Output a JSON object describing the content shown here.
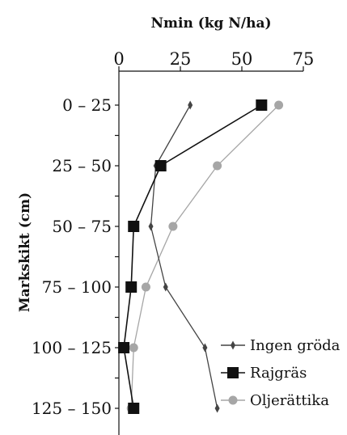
{
  "chart_data": {
    "type": "line",
    "title": "Nmin (kg N/ha)",
    "xlabel": "Nmin (kg N/ha)",
    "ylabel": "Markskikt (cm)",
    "xlim": [
      0,
      75
    ],
    "x_ticks": [
      "0",
      "25",
      "50",
      "75"
    ],
    "categories": [
      "0 – 25",
      "25 – 50",
      "50 – 75",
      "75 – 100",
      "100 – 125",
      "125 – 150"
    ],
    "x_axis_position": "top",
    "y_axis_inverted": true,
    "grid": false,
    "legend_position": "bottom-right",
    "series": [
      {
        "name": "Ingen gröda",
        "marker": "diamond",
        "color": "#444444",
        "values": [
          29,
          15,
          13,
          19,
          35,
          40
        ]
      },
      {
        "name": "Rajgräs",
        "marker": "square",
        "color": "#111111",
        "values": [
          58,
          17,
          6,
          5,
          2,
          6
        ]
      },
      {
        "name": "Oljerättika",
        "marker": "circle",
        "color": "#a6a6a6",
        "values": [
          65,
          40,
          22,
          11,
          6,
          5
        ]
      }
    ]
  }
}
